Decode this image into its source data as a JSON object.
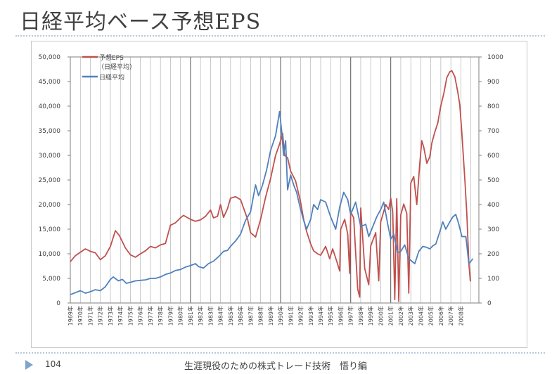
{
  "page_title": "日経平均ベース予想EPS",
  "footer": {
    "page_number": "104",
    "text": "生涯現役のための株式トレード技術　悟り編"
  },
  "colors": {
    "eps_series": "#c0504d",
    "nikkei_series": "#4f81bd",
    "grid": "#a6a6a6",
    "grid_strong": "#555555"
  },
  "chart_data": {
    "type": "line",
    "title": "",
    "xlabel": "",
    "ylabel": "",
    "x_range": [
      1969,
      2009.8
    ],
    "ylim": [
      0,
      50000
    ],
    "ylim_right": [
      0,
      1000
    ],
    "y_ticks": [
      "0",
      "5,000",
      "10,000",
      "15,000",
      "20,000",
      "25,000",
      "30,000",
      "35,000",
      "40,000",
      "45,000",
      "50,000"
    ],
    "y_ticks_right": [
      "0",
      "100",
      "200",
      "300",
      "400",
      "500",
      "600",
      "700",
      "800",
      "900",
      "1000"
    ],
    "x_tick_labels": [
      "1969年",
      "1970年",
      "1971年",
      "1972年",
      "1973年",
      "1974年",
      "1975年",
      "1976年",
      "1977年",
      "1978年",
      "1979年",
      "1980年",
      "1981年",
      "1982年",
      "1983年",
      "1984年",
      "1985年",
      "1986年",
      "1987年",
      "1988年",
      "1989年",
      "1990年",
      "1991年",
      "1992年",
      "1993年",
      "1994年",
      "1995年",
      "1996年",
      "1997年",
      "1998年",
      "1999年",
      "2000年",
      "2001年",
      "2002年",
      "2003年",
      "2004年",
      "2005年",
      "2006年",
      "2007年",
      "2008年"
    ],
    "grid": true,
    "legend_placement": "top-left",
    "series": [
      {
        "name": "予想EPS",
        "name_line2": "（日経平均）",
        "axis": "left",
        "color": "#c0504d",
        "points": [
          [
            1969.0,
            8400
          ],
          [
            1969.5,
            9600
          ],
          [
            1970.0,
            10300
          ],
          [
            1970.5,
            11000
          ],
          [
            1971.0,
            10500
          ],
          [
            1971.5,
            10200
          ],
          [
            1972.0,
            8800
          ],
          [
            1972.5,
            9600
          ],
          [
            1973.0,
            11500
          ],
          [
            1973.5,
            14700
          ],
          [
            1973.9,
            13700
          ],
          [
            1974.5,
            11200
          ],
          [
            1975.0,
            9800
          ],
          [
            1975.5,
            9300
          ],
          [
            1976.0,
            10000
          ],
          [
            1976.5,
            10600
          ],
          [
            1977.0,
            11500
          ],
          [
            1977.5,
            11200
          ],
          [
            1978.0,
            11800
          ],
          [
            1978.5,
            12100
          ],
          [
            1979.0,
            15800
          ],
          [
            1979.5,
            16300
          ],
          [
            1980.0,
            17300
          ],
          [
            1980.3,
            17800
          ],
          [
            1981.0,
            17000
          ],
          [
            1981.5,
            16600
          ],
          [
            1982.0,
            16900
          ],
          [
            1982.5,
            17600
          ],
          [
            1983.0,
            18900
          ],
          [
            1983.3,
            17300
          ],
          [
            1983.7,
            17600
          ],
          [
            1984.0,
            20000
          ],
          [
            1984.3,
            17400
          ],
          [
            1984.7,
            19200
          ],
          [
            1985.0,
            21300
          ],
          [
            1985.5,
            21600
          ],
          [
            1986.0,
            21000
          ],
          [
            1986.3,
            19300
          ],
          [
            1986.7,
            17000
          ],
          [
            1987.0,
            14300
          ],
          [
            1987.5,
            13400
          ],
          [
            1988.0,
            17000
          ],
          [
            1988.5,
            21500
          ],
          [
            1989.0,
            25300
          ],
          [
            1989.5,
            30000
          ],
          [
            1989.9,
            32300
          ],
          [
            1990.2,
            34500
          ],
          [
            1990.4,
            30000
          ],
          [
            1990.7,
            29500
          ],
          [
            1991.0,
            26800
          ],
          [
            1991.5,
            24800
          ],
          [
            1992.0,
            20500
          ],
          [
            1992.3,
            17000
          ],
          [
            1992.6,
            14500
          ],
          [
            1993.0,
            12000
          ],
          [
            1993.3,
            10600
          ],
          [
            1993.7,
            10000
          ],
          [
            1994.0,
            9700
          ],
          [
            1994.5,
            11500
          ],
          [
            1994.9,
            9000
          ],
          [
            1995.2,
            11000
          ],
          [
            1995.6,
            8500
          ],
          [
            1995.9,
            6500
          ],
          [
            1996.0,
            15000
          ],
          [
            1996.4,
            17000
          ],
          [
            1996.7,
            14000
          ],
          [
            1996.9,
            6000
          ],
          [
            1997.0,
            18500
          ],
          [
            1997.3,
            17300
          ],
          [
            1997.7,
            2800
          ],
          [
            1997.9,
            1200
          ],
          [
            1998.0,
            19300
          ],
          [
            1998.4,
            7000
          ],
          [
            1998.8,
            3700
          ],
          [
            1999.0,
            11600
          ],
          [
            1999.5,
            14300
          ],
          [
            1999.8,
            4500
          ],
          [
            2000.0,
            16500
          ],
          [
            2000.5,
            20000
          ],
          [
            2000.8,
            19000
          ],
          [
            2001.0,
            21300
          ],
          [
            2001.2,
            18500
          ],
          [
            2001.4,
            700
          ],
          [
            2001.6,
            21200
          ],
          [
            2001.8,
            300
          ],
          [
            2002.0,
            17900
          ],
          [
            2002.3,
            20100
          ],
          [
            2002.6,
            18200
          ],
          [
            2002.8,
            2000
          ],
          [
            2003.0,
            24400
          ],
          [
            2003.3,
            25700
          ],
          [
            2003.6,
            20000
          ],
          [
            2003.9,
            28400
          ],
          [
            2004.1,
            33000
          ],
          [
            2004.3,
            31600
          ],
          [
            2004.6,
            28400
          ],
          [
            2004.9,
            29700
          ],
          [
            2005.1,
            32500
          ],
          [
            2005.4,
            34700
          ],
          [
            2005.7,
            36600
          ],
          [
            2006.0,
            40100
          ],
          [
            2006.3,
            42600
          ],
          [
            2006.6,
            45800
          ],
          [
            2006.9,
            47000
          ],
          [
            2007.1,
            47200
          ],
          [
            2007.4,
            46000
          ],
          [
            2007.7,
            42800
          ],
          [
            2007.9,
            40200
          ],
          [
            2008.1,
            34500
          ],
          [
            2008.4,
            25000
          ],
          [
            2008.6,
            18000
          ],
          [
            2008.8,
            8000
          ],
          [
            2008.95,
            4400
          ]
        ]
      },
      {
        "name": "日経平均",
        "axis": "left",
        "color": "#4f81bd",
        "points": [
          [
            1969.0,
            1700
          ],
          [
            1969.5,
            2100
          ],
          [
            1970.0,
            2500
          ],
          [
            1970.5,
            2000
          ],
          [
            1971.0,
            2300
          ],
          [
            1971.5,
            2700
          ],
          [
            1972.0,
            2500
          ],
          [
            1972.5,
            3300
          ],
          [
            1973.0,
            4800
          ],
          [
            1973.3,
            5300
          ],
          [
            1973.8,
            4500
          ],
          [
            1974.2,
            4800
          ],
          [
            1974.6,
            4000
          ],
          [
            1975.0,
            4200
          ],
          [
            1975.5,
            4500
          ],
          [
            1976.0,
            4600
          ],
          [
            1976.5,
            4700
          ],
          [
            1977.0,
            5000
          ],
          [
            1977.5,
            5000
          ],
          [
            1978.0,
            5300
          ],
          [
            1978.5,
            5800
          ],
          [
            1979.0,
            6100
          ],
          [
            1979.5,
            6600
          ],
          [
            1980.0,
            6800
          ],
          [
            1980.5,
            7300
          ],
          [
            1981.0,
            7600
          ],
          [
            1981.5,
            8000
          ],
          [
            1981.8,
            7400
          ],
          [
            1982.3,
            7100
          ],
          [
            1982.8,
            8000
          ],
          [
            1983.3,
            8500
          ],
          [
            1983.8,
            9400
          ],
          [
            1984.3,
            10500
          ],
          [
            1984.7,
            10700
          ],
          [
            1985.0,
            11500
          ],
          [
            1985.5,
            12600
          ],
          [
            1986.0,
            14000
          ],
          [
            1986.5,
            16800
          ],
          [
            1987.0,
            18500
          ],
          [
            1987.5,
            24000
          ],
          [
            1987.8,
            21800
          ],
          [
            1988.2,
            24000
          ],
          [
            1988.6,
            27000
          ],
          [
            1989.0,
            31000
          ],
          [
            1989.5,
            34000
          ],
          [
            1989.9,
            38900
          ],
          [
            1990.1,
            35000
          ],
          [
            1990.3,
            30000
          ],
          [
            1990.5,
            33000
          ],
          [
            1990.7,
            23000
          ],
          [
            1991.0,
            26000
          ],
          [
            1991.3,
            24000
          ],
          [
            1991.6,
            22500
          ],
          [
            1992.0,
            19000
          ],
          [
            1992.3,
            16800
          ],
          [
            1992.6,
            15000
          ],
          [
            1993.0,
            17000
          ],
          [
            1993.3,
            20000
          ],
          [
            1993.7,
            19000
          ],
          [
            1994.0,
            21000
          ],
          [
            1994.5,
            20500
          ],
          [
            1995.0,
            17500
          ],
          [
            1995.5,
            15000
          ],
          [
            1995.9,
            19500
          ],
          [
            1996.3,
            22500
          ],
          [
            1996.7,
            21000
          ],
          [
            1997.0,
            18000
          ],
          [
            1997.5,
            20500
          ],
          [
            1998.0,
            15500
          ],
          [
            1998.5,
            16000
          ],
          [
            1998.8,
            13500
          ],
          [
            1999.2,
            15500
          ],
          [
            1999.6,
            17500
          ],
          [
            2000.0,
            19000
          ],
          [
            2000.3,
            20500
          ],
          [
            2000.7,
            16000
          ],
          [
            2001.0,
            13000
          ],
          [
            2001.3,
            14000
          ],
          [
            2001.7,
            10200
          ],
          [
            2002.0,
            10500
          ],
          [
            2002.4,
            11800
          ],
          [
            2002.8,
            9000
          ],
          [
            2003.1,
            8500
          ],
          [
            2003.4,
            8000
          ],
          [
            2003.8,
            10500
          ],
          [
            2004.2,
            11500
          ],
          [
            2004.6,
            11300
          ],
          [
            2004.9,
            11000
          ],
          [
            2005.2,
            11600
          ],
          [
            2005.5,
            12000
          ],
          [
            2005.9,
            14500
          ],
          [
            2006.2,
            16500
          ],
          [
            2006.5,
            15000
          ],
          [
            2006.9,
            16500
          ],
          [
            2007.2,
            17500
          ],
          [
            2007.5,
            18000
          ],
          [
            2007.8,
            16000
          ],
          [
            2008.1,
            13500
          ],
          [
            2008.5,
            13500
          ],
          [
            2008.8,
            8000
          ],
          [
            2009.0,
            8500
          ],
          [
            2009.2,
            9000
          ]
        ]
      }
    ]
  }
}
